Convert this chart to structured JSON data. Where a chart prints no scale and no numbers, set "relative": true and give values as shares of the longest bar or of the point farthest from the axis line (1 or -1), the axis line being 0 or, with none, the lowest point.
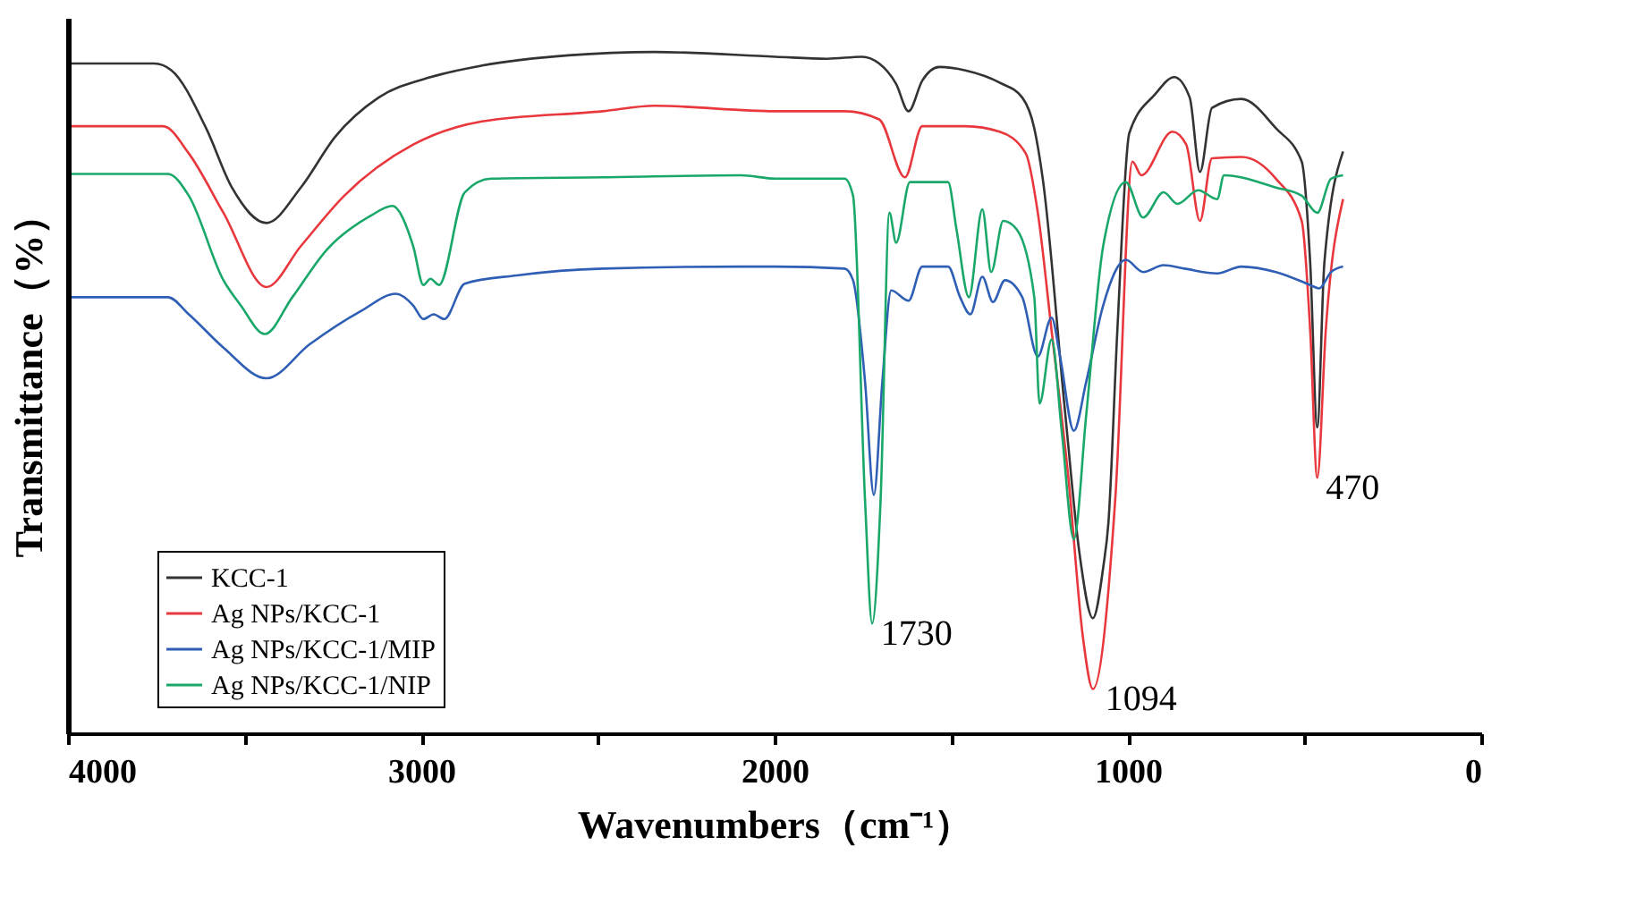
{
  "chart_data": {
    "type": "line",
    "relative": true,
    "xlabel": "Wavenumbers（cm⁻¹）",
    "ylabel": "Transmittance（%）",
    "xlim": [
      4000,
      0
    ],
    "xticks": [
      4000,
      {
        "value": 3500,
        "label": null
      },
      3000,
      {
        "value": 2500,
        "label": null
      },
      2000,
      {
        "value": 1500,
        "label": null
      },
      1000,
      {
        "value": 500,
        "label": null
      },
      0
    ],
    "legend": "bottom left",
    "series": [
      {
        "name": "KCC-1",
        "color": "#333333",
        "x": [
          3990,
          3756,
          3707,
          3609,
          3536,
          3438,
          3341,
          3243,
          3121,
          2974,
          2828,
          2584,
          2340,
          1998,
          1851,
          1753,
          1704,
          1656,
          1621,
          1582,
          1534,
          1460,
          1363,
          1299,
          1265,
          1241,
          1177,
          1138,
          1099,
          1070,
          1055,
          1030,
          996,
          923,
          869,
          825,
          796,
          762,
          679,
          581,
          508,
          484,
          464,
          444,
          391
        ],
        "values": [
          0.983,
          0.983,
          0.973,
          0.888,
          0.801,
          0.749,
          0.801,
          0.876,
          0.933,
          0.963,
          0.98,
          0.995,
          1.0,
          0.993,
          0.99,
          0.993,
          0.983,
          0.953,
          0.913,
          0.958,
          0.978,
          0.973,
          0.955,
          0.933,
          0.888,
          0.814,
          0.467,
          0.268,
          0.169,
          0.243,
          0.31,
          0.59,
          0.881,
          0.938,
          0.963,
          0.933,
          0.824,
          0.918,
          0.931,
          0.888,
          0.839,
          0.69,
          0.449,
          0.69,
          0.854
        ]
      },
      {
        "name": "Ag NPs/KCC-1",
        "color": "#e8383d",
        "x": [
          3990,
          3731,
          3658,
          3560,
          3438,
          3341,
          3218,
          3023,
          2828,
          2486,
          2340,
          1998,
          1802,
          1704,
          1631,
          1582,
          1460,
          1363,
          1289,
          1255,
          1216,
          1167,
          1128,
          1099,
          1035,
          987,
          962,
          874,
          835,
          796,
          762,
          679,
          581,
          508,
          484,
          464,
          440,
          391
        ],
        "values": [
          0.891,
          0.891,
          0.851,
          0.764,
          0.655,
          0.715,
          0.789,
          0.864,
          0.898,
          0.913,
          0.921,
          0.913,
          0.913,
          0.901,
          0.816,
          0.891,
          0.891,
          0.883,
          0.851,
          0.764,
          0.591,
          0.367,
          0.144,
          0.065,
          0.35,
          0.839,
          0.819,
          0.883,
          0.864,
          0.752,
          0.844,
          0.846,
          0.814,
          0.752,
          0.591,
          0.375,
          0.591,
          0.784
        ]
      },
      {
        "name": "Ag NPs/KCC-1/MIP",
        "color": "#2f5fb5",
        "x": [
          3990,
          3717,
          3658,
          3560,
          3438,
          3316,
          3170,
          3072,
          3023,
          2994,
          2965,
          2935,
          2877,
          2730,
          2486,
          2095,
          1998,
          1802,
          1778,
          1744,
          1719,
          1695,
          1670,
          1621,
          1582,
          1509,
          1475,
          1446,
          1412,
          1382,
          1348,
          1299,
          1255,
          1216,
          1192,
          1153,
          1118,
          1070,
          1006,
          957,
          899,
          840,
          747,
          679,
          581,
          484,
          459,
          425,
          391
        ],
        "values": [
          0.64,
          0.64,
          0.615,
          0.566,
          0.521,
          0.571,
          0.62,
          0.645,
          0.628,
          0.608,
          0.615,
          0.608,
          0.66,
          0.672,
          0.682,
          0.685,
          0.685,
          0.682,
          0.665,
          0.516,
          0.35,
          0.516,
          0.65,
          0.635,
          0.685,
          0.685,
          0.64,
          0.615,
          0.67,
          0.633,
          0.665,
          0.64,
          0.553,
          0.61,
          0.553,
          0.444,
          0.516,
          0.628,
          0.695,
          0.677,
          0.687,
          0.682,
          0.675,
          0.685,
          0.677,
          0.658,
          0.653,
          0.677,
          0.685
        ]
      },
      {
        "name": "Ag NPs/KCC-1/NIP",
        "color": "#1aa86a",
        "x": [
          3990,
          3717,
          3658,
          3560,
          3511,
          3443,
          3365,
          3267,
          3145,
          3082,
          3023,
          2994,
          2974,
          2950,
          2877,
          2803,
          2486,
          2095,
          1998,
          1802,
          1778,
          1744,
          1724,
          1700,
          1675,
          1656,
          1617,
          1509,
          1485,
          1450,
          1412,
          1387,
          1353,
          1314,
          1265,
          1250,
          1216,
          1187,
          1153,
          1118,
          1070,
          1006,
          957,
          899,
          860,
          801,
          747,
          728,
          581,
          508,
          464,
          425,
          391
        ],
        "values": [
          0.821,
          0.821,
          0.789,
          0.665,
          0.628,
          0.586,
          0.64,
          0.71,
          0.759,
          0.774,
          0.715,
          0.658,
          0.667,
          0.658,
          0.794,
          0.814,
          0.816,
          0.819,
          0.814,
          0.814,
          0.789,
          0.342,
          0.161,
          0.342,
          0.764,
          0.72,
          0.809,
          0.809,
          0.739,
          0.64,
          0.769,
          0.677,
          0.752,
          0.739,
          0.64,
          0.484,
          0.578,
          0.442,
          0.285,
          0.467,
          0.715,
          0.809,
          0.757,
          0.794,
          0.777,
          0.797,
          0.784,
          0.819,
          0.801,
          0.789,
          0.764,
          0.814,
          0.819
        ]
      }
    ],
    "annotations": [
      {
        "text": "1730",
        "x": 1730,
        "y": 0.161
      },
      {
        "text": "1094",
        "x": 1094,
        "y": 0.065
      },
      {
        "text": "470",
        "x": 470,
        "y": 0.375
      }
    ]
  }
}
